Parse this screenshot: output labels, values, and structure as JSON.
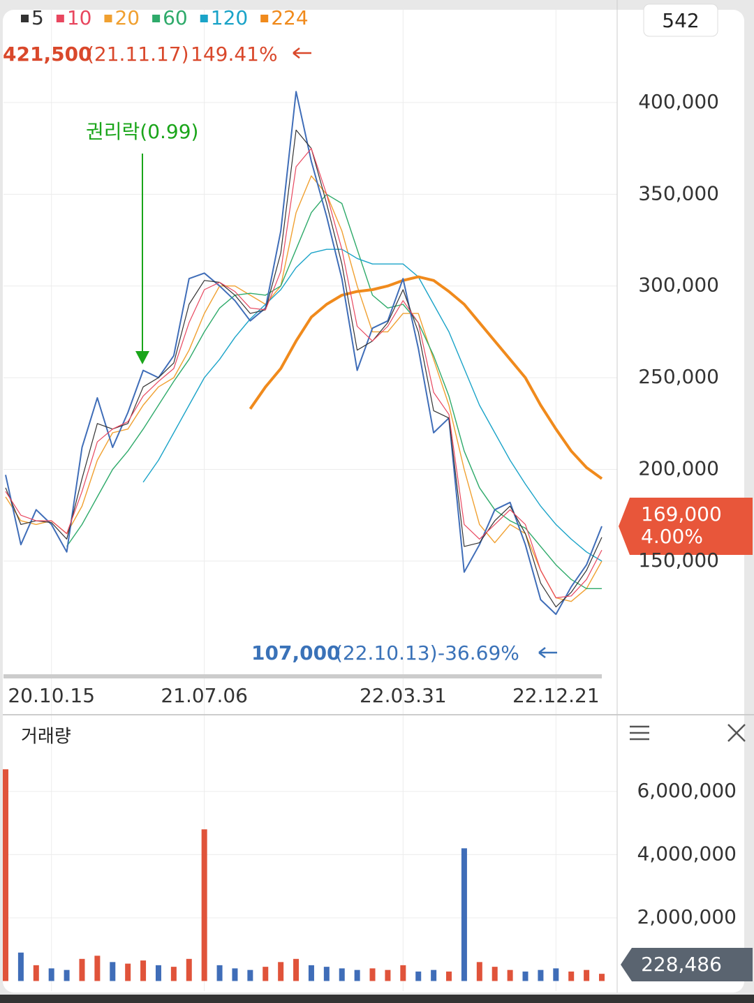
{
  "chart_data": {
    "type": "stock-line",
    "series": [
      {
        "name": "5",
        "color": "#333333",
        "width": 1.2,
        "values": [
          190000,
          170000,
          172000,
          171000,
          162000,
          195000,
          225000,
          222000,
          225000,
          245000,
          250000,
          258000,
          290000,
          303000,
          302000,
          295000,
          285000,
          287000,
          318000,
          385000,
          375000,
          345000,
          312000,
          265000,
          270000,
          280000,
          298000,
          275000,
          232000,
          228000,
          158000,
          160000,
          172000,
          180000,
          165000,
          138000,
          125000,
          133000,
          145000,
          163000
        ]
      },
      {
        "name": "10",
        "color": "#e8475f",
        "width": 1.2,
        "values": [
          188000,
          175000,
          172000,
          172000,
          165000,
          188000,
          215000,
          222000,
          226000,
          240000,
          248000,
          255000,
          280000,
          298000,
          302000,
          297000,
          288000,
          287000,
          308000,
          365000,
          375000,
          350000,
          320000,
          278000,
          270000,
          278000,
          292000,
          280000,
          242000,
          230000,
          170000,
          162000,
          170000,
          178000,
          170000,
          145000,
          130000,
          131000,
          140000,
          156000
        ]
      },
      {
        "name": "20",
        "color": "#f0a030",
        "width": 1.4,
        "values": [
          185000,
          172000,
          170000,
          172000,
          165000,
          180000,
          205000,
          220000,
          222000,
          235000,
          245000,
          250000,
          265000,
          285000,
          300000,
          300000,
          295000,
          290000,
          300000,
          340000,
          360000,
          350000,
          330000,
          300000,
          275000,
          275000,
          285000,
          285000,
          260000,
          235000,
          200000,
          170000,
          160000,
          170000,
          165000,
          145000,
          130000,
          128000,
          135000,
          150000
        ]
      },
      {
        "name": "60",
        "color": "#2eaa6a",
        "width": 1.4,
        "values": [
          null,
          null,
          null,
          null,
          158000,
          170000,
          185000,
          200000,
          210000,
          222000,
          235000,
          248000,
          260000,
          275000,
          288000,
          295000,
          296000,
          295000,
          300000,
          320000,
          340000,
          350000,
          345000,
          320000,
          295000,
          288000,
          290000,
          280000,
          262000,
          240000,
          210000,
          190000,
          178000,
          172000,
          168000,
          158000,
          148000,
          140000,
          135000,
          135000
        ]
      },
      {
        "name": "120",
        "color": "#1aa3c8",
        "width": 1.4,
        "values": [
          null,
          null,
          null,
          null,
          null,
          null,
          null,
          null,
          null,
          193000,
          205000,
          220000,
          235000,
          250000,
          260000,
          272000,
          282000,
          290000,
          298000,
          310000,
          318000,
          320000,
          320000,
          315000,
          312000,
          312000,
          312000,
          305000,
          290000,
          275000,
          255000,
          235000,
          220000,
          205000,
          192000,
          180000,
          170000,
          162000,
          155000,
          150000
        ]
      },
      {
        "name": "224",
        "color": "#f08a1c",
        "width": 4,
        "values": [
          null,
          null,
          null,
          null,
          null,
          null,
          null,
          null,
          null,
          null,
          null,
          null,
          null,
          null,
          null,
          null,
          233000,
          245000,
          255000,
          270000,
          283000,
          290000,
          295000,
          297000,
          298000,
          300000,
          303000,
          305000,
          303000,
          297000,
          290000,
          280000,
          270000,
          260000,
          250000,
          235000,
          222000,
          210000,
          201000,
          195000
        ]
      }
    ],
    "price": {
      "color": "#3f6db8",
      "values": [
        197000,
        159000,
        178000,
        170000,
        155000,
        212000,
        239000,
        212000,
        231000,
        254000,
        250000,
        262000,
        304000,
        307000,
        300000,
        292000,
        281000,
        288000,
        330000,
        406000,
        368000,
        338000,
        304000,
        254000,
        277000,
        281000,
        304000,
        266000,
        220000,
        228000,
        144000,
        159000,
        178000,
        182000,
        159000,
        129000,
        121000,
        136000,
        148000,
        169000
      ],
      "current_label": "169,000",
      "current_change": "4.00%"
    },
    "categories": [
      null,
      null,
      null,
      "20.10.15",
      null,
      null,
      null,
      null,
      null,
      null,
      null,
      null,
      null,
      "21.07.06",
      null,
      null,
      null,
      null,
      null,
      null,
      null,
      null,
      null,
      null,
      null,
      null,
      "22.03.31",
      null,
      null,
      null,
      null,
      null,
      null,
      null,
      null,
      null,
      "22.12.21",
      null,
      null,
      null
    ],
    "ylim": [
      86800,
      450200
    ],
    "yticks": [
      {
        "value": 150000,
        "label": "150,000"
      },
      {
        "value": 200000,
        "label": "200,000"
      },
      {
        "value": 250000,
        "label": "250,000"
      },
      {
        "value": 300000,
        "label": "300,000"
      },
      {
        "value": 350000,
        "label": "350,000"
      },
      {
        "value": 400000,
        "label": "400,000"
      }
    ],
    "grid": true,
    "high": {
      "price": "421,500",
      "date": "(21.11.17)",
      "change": "149.41%"
    },
    "low": {
      "price": "107,000",
      "date": "(22.10.13)",
      "change": "-36.69%"
    },
    "event": "권리락(0.99)",
    "counter": "542",
    "volume": {
      "title": "거래량",
      "color_up": "#e0533a",
      "color_down": "#3f6db8",
      "values": [
        6700000,
        900000,
        500000,
        400000,
        350000,
        700000,
        800000,
        600000,
        550000,
        650000,
        500000,
        450000,
        700000,
        4800000,
        500000,
        400000,
        350000,
        450000,
        600000,
        700000,
        500000,
        450000,
        400000,
        350000,
        400000,
        350000,
        500000,
        300000,
        350000,
        300000,
        4200000,
        600000,
        450000,
        350000,
        300000,
        350000,
        400000,
        300000,
        350000,
        228486
      ],
      "current_label": "228,486",
      "ylim": [
        0,
        7190000
      ],
      "yticks": [
        {
          "value": 2000000,
          "label": "2,000,000"
        },
        {
          "value": 4000000,
          "label": "4,000,000"
        },
        {
          "value": 6000000,
          "label": "6,000,000"
        }
      ]
    }
  }
}
